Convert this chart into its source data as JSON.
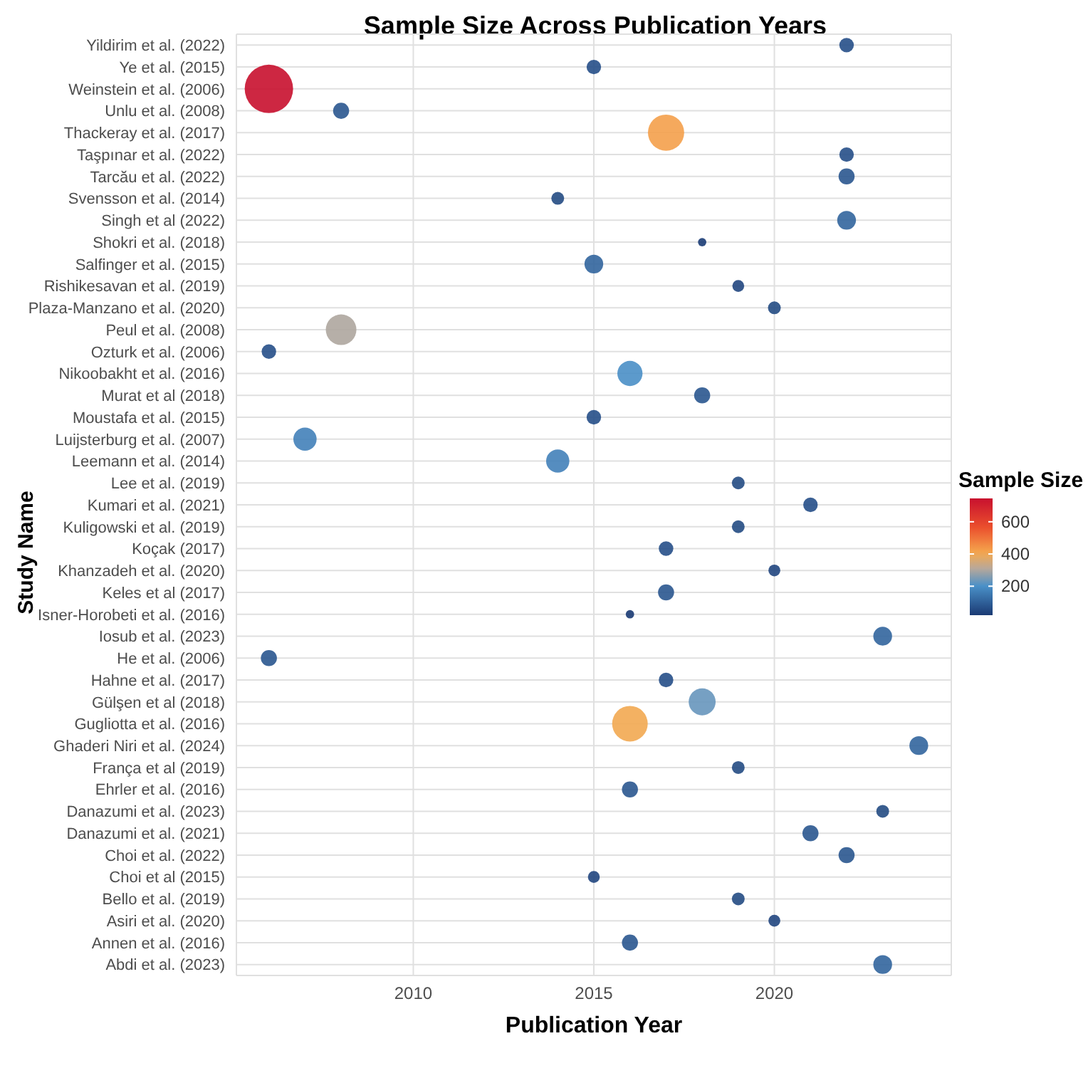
{
  "chart_data": {
    "type": "bubble",
    "title": "Sample Size Across Publication Years",
    "xlabel": "Publication Year",
    "ylabel": "Study Name",
    "clabel": "Sample Size",
    "orientation": "horizontal",
    "categories": [
      "Yildirim et al. (2022)",
      "Ye et al. (2015)",
      "Weinstein et al. (2006)",
      "Unlu et al. (2008)",
      "Thackeray et al. (2017)",
      "Taşpınar et al. (2022)",
      "Tarcău et al. (2022)",
      "Svensson et al. (2014)",
      "Singh et al (2022)",
      "Shokri et al. (2018)",
      "Salfinger et al. (2015)",
      "Rishikesavan et al. (2019)",
      "Plaza-Manzano et al. (2020)",
      "Peul et al. (2008)",
      "Ozturk et al. (2006)",
      "Nikoobakht et al. (2016)",
      "Murat et al (2018)",
      "Moustafa et al. (2015)",
      "Luijsterburg et al. (2007)",
      "Leemann et al. (2014)",
      "Lee et al. (2019)",
      "Kumari et al. (2021)",
      "Kuligowski et al. (2019)",
      "Koçak (2017)",
      "Khanzadeh et al. (2020)",
      "Keles et al (2017)",
      "Isner-Horobeti et al. (2016)",
      "Iosub et al. (2023)",
      "He et al. (2006)",
      "Hahne et al. (2017)",
      "Gülşen et al (2018)",
      "Gugliotta et al. (2016)",
      "Ghaderi Niri et al. (2024)",
      "França et al (2019)",
      "Ehrler et al. (2016)",
      "Danazumi et al. (2023)",
      "Danazumi et al. (2021)",
      "Choi et al. (2022)",
      "Choi et al (2015)",
      "Bello et al. (2019)",
      "Asiri et al. (2020)",
      "Annen et al. (2016)",
      "Abdi et al. (2023)"
    ],
    "values": [
      2022,
      2015,
      2006,
      2008,
      2017,
      2022,
      2022,
      2014,
      2022,
      2018,
      2015,
      2019,
      2020,
      2008,
      2006,
      2016,
      2018,
      2015,
      2007,
      2014,
      2019,
      2021,
      2019,
      2017,
      2020,
      2017,
      2016,
      2023,
      2006,
      2017,
      2018,
      2016,
      2024,
      2019,
      2016,
      2023,
      2021,
      2022,
      2015,
      2019,
      2020,
      2016,
      2023
    ],
    "cvalues": [
      65,
      65,
      745,
      80,
      420,
      65,
      80,
      55,
      110,
      25,
      110,
      45,
      55,
      300,
      65,
      200,
      80,
      65,
      170,
      170,
      55,
      65,
      55,
      65,
      45,
      80,
      20,
      110,
      80,
      65,
      230,
      400,
      110,
      55,
      80,
      55,
      80,
      80,
      45,
      55,
      45,
      80,
      110
    ],
    "sizes": [
      0.09,
      0.09,
      1,
      0.11,
      0.56,
      0.09,
      0.11,
      0.07,
      0.15,
      0.03,
      0.15,
      0.06,
      0.07,
      0.4,
      0.09,
      0.27,
      0.11,
      0.09,
      0.23,
      0.23,
      0.07,
      0.09,
      0.07,
      0.09,
      0.06,
      0.11,
      0.03,
      0.15,
      0.11,
      0.09,
      0.31,
      0.54,
      0.15,
      0.07,
      0.11,
      0.07,
      0.11,
      0.11,
      0.06,
      0.07,
      0.06,
      0.11,
      0.15
    ],
    "xlim": [
      2005.1,
      2024.9
    ],
    "xticks": [
      2010,
      2015,
      2020
    ],
    "clim": [
      20,
      745
    ],
    "cticks": [
      200,
      400,
      600
    ],
    "grid": true
  }
}
